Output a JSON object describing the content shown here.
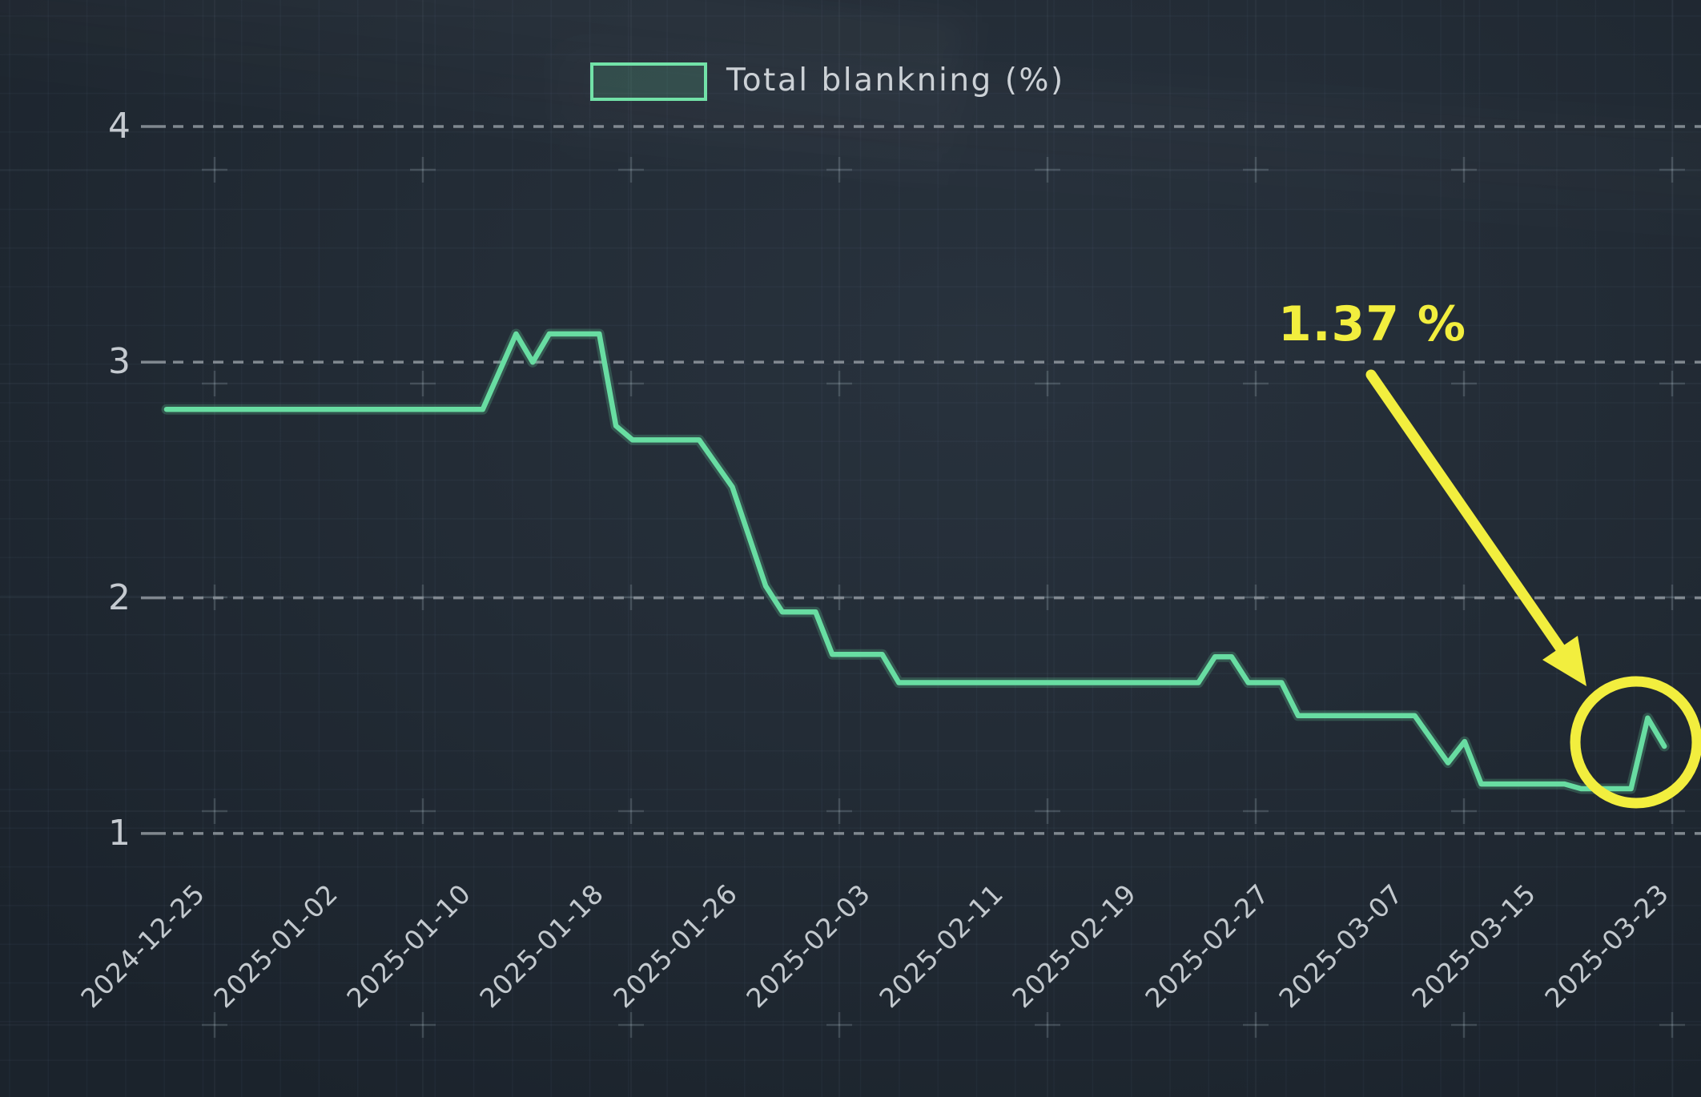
{
  "legend": {
    "label": "Total blankning (%)",
    "swatch_border_color": "#72e2a8",
    "swatch_fill_color": "rgba(104,221,162,0.16)"
  },
  "annotation": {
    "label": "1.37 %",
    "color": "#f2ee3e",
    "target_date": "2025-03-23",
    "target_value": 1.37,
    "shapes": [
      "arrow",
      "circle"
    ]
  },
  "colors": {
    "background": "#232c36",
    "line": "#68dda2",
    "gridline_dashed": "#868d95",
    "axis_text": "#c5cad0",
    "annotation_yellow": "#f2ee3e"
  },
  "chart_data": {
    "type": "line",
    "title": "",
    "xlabel": "",
    "ylabel": "",
    "grid": "dashed horizontal gridlines at integer values",
    "legend_position": "top-center",
    "y_ticks": [
      4,
      3,
      2,
      1
    ],
    "ylim": [
      0.7,
      4.4
    ],
    "x_range": [
      "2024-12-23",
      "2025-03-23"
    ],
    "x_ticks": [
      "2024-12-25",
      "2025-01-02",
      "2025-01-10",
      "2025-01-18",
      "2025-01-26",
      "2025-02-03",
      "2025-02-11",
      "2025-02-19",
      "2025-02-27",
      "2025-03-07",
      "2025-03-15",
      "2025-03-23"
    ],
    "series": [
      {
        "name": "Total blankning (%)",
        "color": "#68dda2",
        "points": [
          {
            "date": "2024-12-23",
            "value": 2.8
          },
          {
            "date": "2025-01-11",
            "value": 2.8
          },
          {
            "date": "2025-01-13",
            "value": 3.12
          },
          {
            "date": "2025-01-14",
            "value": 3.0
          },
          {
            "date": "2025-01-15",
            "value": 3.12
          },
          {
            "date": "2025-01-18",
            "value": 3.12
          },
          {
            "date": "2025-01-19",
            "value": 2.73
          },
          {
            "date": "2025-01-20",
            "value": 2.67
          },
          {
            "date": "2025-01-24",
            "value": 2.67
          },
          {
            "date": "2025-01-26",
            "value": 2.47
          },
          {
            "date": "2025-01-28",
            "value": 2.05
          },
          {
            "date": "2025-01-29",
            "value": 1.94
          },
          {
            "date": "2025-01-31",
            "value": 1.94
          },
          {
            "date": "2025-02-01",
            "value": 1.76
          },
          {
            "date": "2025-02-04",
            "value": 1.76
          },
          {
            "date": "2025-02-05",
            "value": 1.64
          },
          {
            "date": "2025-02-23",
            "value": 1.64
          },
          {
            "date": "2025-02-24",
            "value": 1.75
          },
          {
            "date": "2025-02-25",
            "value": 1.75
          },
          {
            "date": "2025-02-26",
            "value": 1.64
          },
          {
            "date": "2025-02-28",
            "value": 1.64
          },
          {
            "date": "2025-03-01",
            "value": 1.5
          },
          {
            "date": "2025-03-08",
            "value": 1.5
          },
          {
            "date": "2025-03-10",
            "value": 1.3
          },
          {
            "date": "2025-03-11",
            "value": 1.39
          },
          {
            "date": "2025-03-12",
            "value": 1.21
          },
          {
            "date": "2025-03-17",
            "value": 1.21
          },
          {
            "date": "2025-03-18",
            "value": 1.19
          },
          {
            "date": "2025-03-21",
            "value": 1.19
          },
          {
            "date": "2025-03-22",
            "value": 1.49
          },
          {
            "date": "2025-03-23",
            "value": 1.37
          }
        ]
      }
    ]
  }
}
